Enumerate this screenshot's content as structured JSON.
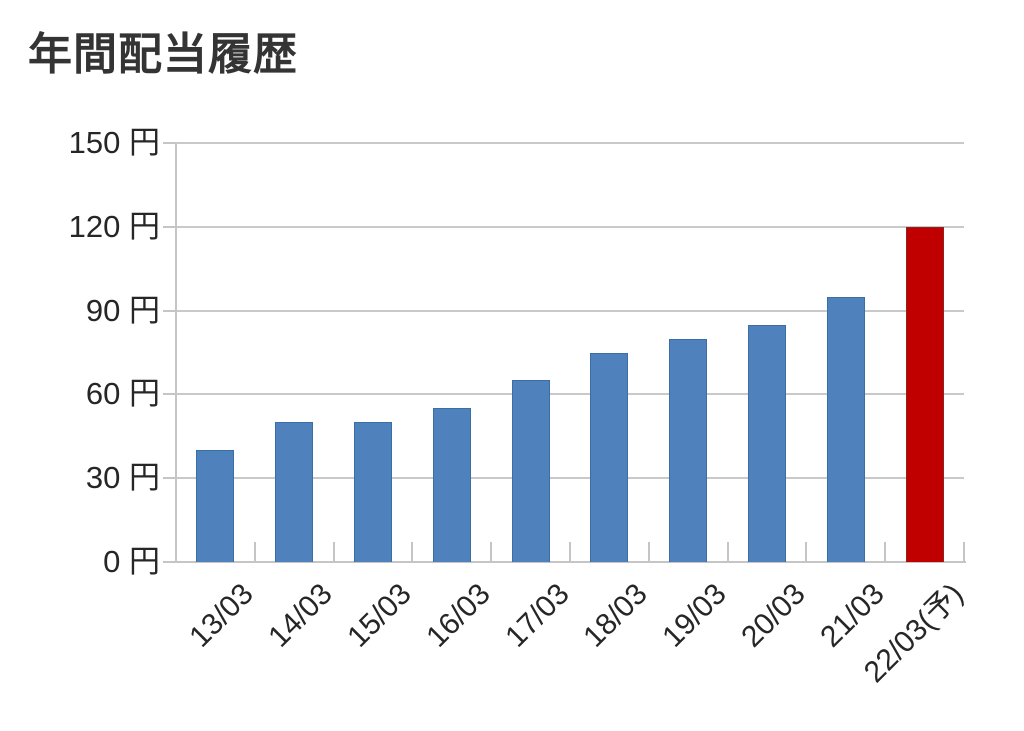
{
  "title": "年間配当履歴",
  "chart_data": {
    "type": "bar",
    "title": "年間配当履歴",
    "categories": [
      "13/03",
      "14/03",
      "15/03",
      "16/03",
      "17/03",
      "18/03",
      "19/03",
      "20/03",
      "21/03",
      "22/03(予)"
    ],
    "values": [
      40,
      50,
      50,
      55,
      65,
      75,
      80,
      85,
      95,
      120
    ],
    "unit": "円",
    "yticks": [
      0,
      30,
      60,
      90,
      120,
      150
    ],
    "ytick_labels": [
      "0 円",
      "30 円",
      "60 円",
      "90 円",
      "120 円",
      "150 円"
    ],
    "ylim": [
      0,
      150
    ],
    "xlabel": "",
    "ylabel": "",
    "grid": true,
    "legend_position": "none",
    "forecast_index": 9,
    "colors": {
      "bar_fill": "#4f81bd",
      "bar_border": "#3a6ea5",
      "forecast_fill": "#c00000",
      "forecast_border": "#8e2320",
      "grid": "#c9c9c9",
      "axis": "#c5c5c5",
      "tick_text": "#262626",
      "title_text": "#343434"
    }
  }
}
